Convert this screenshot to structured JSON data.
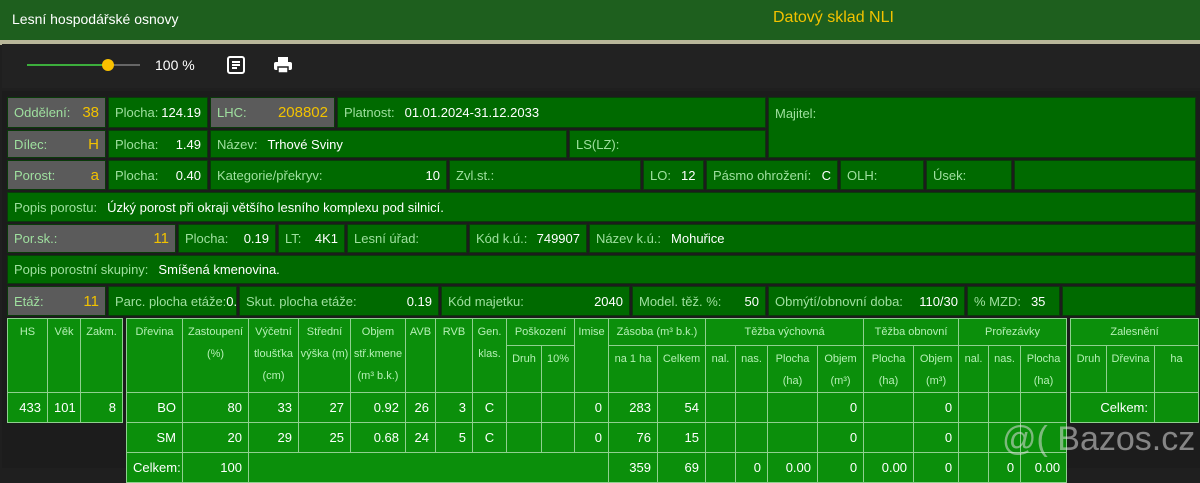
{
  "header": {
    "app_title": "Lesní hospodářské osnovy",
    "store_title": "Datový sklad NLI"
  },
  "toolbar": {
    "zoom_percent": 100,
    "zoom_label": "100 %",
    "icons": [
      "notes-icon",
      "print-icon"
    ]
  },
  "colors": {
    "header_bg": "#1e5f1e",
    "cell_bg": "#006a00",
    "table_bg": "#0b8f0b",
    "gray_cell": "#5b5b5b",
    "highlight": "#f2c200"
  },
  "info": {
    "oddeleni": {
      "label": "Oddělení:",
      "value": "38"
    },
    "plocha1": {
      "label": "Plocha:",
      "value": "124.19"
    },
    "lhc": {
      "label": "LHC:",
      "value": "208802"
    },
    "platnost": {
      "label": "Platnost:",
      "value": "01.01.2024-31.12.2033"
    },
    "majitel": {
      "label": "Majitel:",
      "value": ""
    },
    "dilec": {
      "label": "Dílec:",
      "value": "H"
    },
    "plocha2": {
      "label": "Plocha:",
      "value": "1.49"
    },
    "nazev": {
      "label": "Název:",
      "value": "Trhové Sviny"
    },
    "ls": {
      "label": "LS(LZ):",
      "value": ""
    },
    "porost": {
      "label": "Porost:",
      "value": "a"
    },
    "plocha3": {
      "label": "Plocha:",
      "value": "0.40"
    },
    "kategorie": {
      "label": "Kategorie/překryv:",
      "value": "10"
    },
    "zvlst": {
      "label": "Zvl.st.:",
      "value": ""
    },
    "lo": {
      "label": "LO:",
      "value": "12"
    },
    "pasmo": {
      "label": "Pásmo ohrožení:",
      "value": "C"
    },
    "olh": {
      "label": "OLH:",
      "value": ""
    },
    "usek": {
      "label": "Úsek:",
      "value": ""
    },
    "popis_porostu": {
      "label": "Popis porostu:",
      "value": "Úzký porost při okraji většího lesního komplexu pod silnicí."
    },
    "porsk": {
      "label": "Por.sk.:",
      "value": "11"
    },
    "plocha4": {
      "label": "Plocha:",
      "value": "0.19"
    },
    "lt": {
      "label": "LT:",
      "value": "4K1"
    },
    "lesni_urad": {
      "label": "Lesní úřad:",
      "value": ""
    },
    "kod_ku": {
      "label": "Kód k.ú.:",
      "value": "749907"
    },
    "nazev_ku": {
      "label": "Název k.ú.:",
      "value": "Mohuřice"
    },
    "popis_skupiny": {
      "label": "Popis porostní skupiny:",
      "value": "Smíšená kmenovina."
    },
    "etaz": {
      "label": "Etáž:",
      "value": "11"
    },
    "parc": {
      "label": "Parc. plocha etáže:",
      "value": "0.19"
    },
    "skut": {
      "label": "Skut. plocha etáže:",
      "value": "0.19"
    },
    "kod_majetku": {
      "label": "Kód majetku:",
      "value": "2040"
    },
    "model": {
      "label": "Model. těž. %:",
      "value": "50"
    },
    "obmyti": {
      "label": "Obmýtí/obnovní doba:",
      "value": "110/30"
    },
    "mzd": {
      "label": "% MZD:",
      "value": "35"
    }
  },
  "left_table": {
    "headers": [
      "HS",
      "Věk",
      "Zakm."
    ],
    "row": [
      "433",
      "101",
      "8"
    ]
  },
  "main_table": {
    "group_headers": {
      "poskozeni": "Poškození",
      "zasoba": "Zásoba (m³ b.k.)",
      "tezba_vych": "Těžba výchovná",
      "tezba_obn": "Těžba obnovní",
      "prorezavky": "Prořezávky"
    },
    "headers": {
      "drevina": "Dřevina",
      "zastoupeni": "Zastoupení (%)",
      "vycetni": "Výčetní tloušťka (cm)",
      "stredni": "Střední výška (m)",
      "objem": "Objem stř.kmene (m³ b.k.)",
      "avb": "AVB",
      "rvb": "RVB",
      "gen": "Gen. klas.",
      "druh": "Druh",
      "p10": "10%",
      "imise": "Imise",
      "na1ha": "na 1 ha",
      "celkem": "Celkem",
      "nal": "nal.",
      "nas": "nas.",
      "plocha": "Plocha (ha)",
      "objem_m3": "Objem (m³)"
    },
    "rows": [
      [
        "BO",
        "80",
        "33",
        "27",
        "0.92",
        "26",
        "3",
        "C",
        "",
        "",
        "0",
        "283",
        "54",
        "",
        "",
        "",
        "0",
        "",
        "0",
        "",
        "",
        ""
      ],
      [
        "SM",
        "20",
        "29",
        "25",
        "0.68",
        "24",
        "5",
        "C",
        "",
        "",
        "0",
        "76",
        "15",
        "",
        "",
        "",
        "0",
        "",
        "0",
        "",
        "",
        ""
      ]
    ],
    "total": {
      "label": "Celkem:",
      "zastoupeni": "100",
      "na1ha": "359",
      "celkem": "69",
      "tv_nas": "0",
      "tv_plocha": "0.00",
      "tv_objem": "0",
      "to_plocha": "0.00",
      "to_objem": "0",
      "pr_nas": "0",
      "pr_plocha": "0.00"
    }
  },
  "zalesneni": {
    "title": "Zalesnění",
    "headers": [
      "Druh",
      "Dřevina",
      "ha"
    ],
    "total_label": "Celkem:",
    "total": ""
  },
  "watermark": "@( Bazos.cz"
}
